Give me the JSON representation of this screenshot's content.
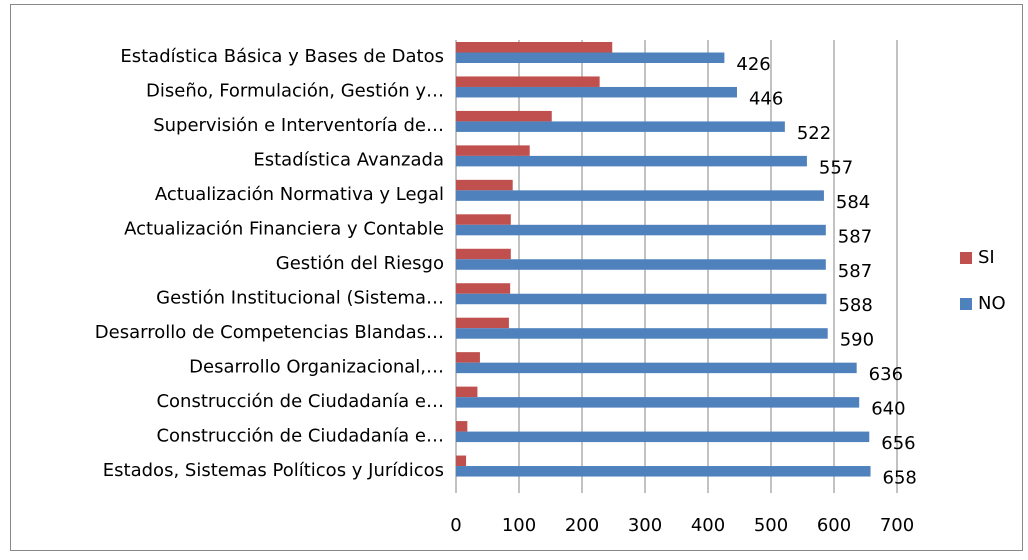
{
  "chart_data": {
    "type": "barh",
    "categories": [
      "Estadística Básica y Bases de Datos",
      "Diseño, Formulación, Gestión y…",
      "Supervisión e Interventoría de…",
      "Estadística Avanzada",
      "Actualización Normativa y Legal",
      "Actualización Financiera y Contable",
      "Gestión del Riesgo",
      "Gestión Institucional (Sistema…",
      "Desarrollo de Competencias Blandas…",
      "Desarrollo Organizacional,…",
      "Construcción de Ciudadanía e…",
      "Construcción de Ciudadanía e…",
      "Estados, Sistemas Políticos y Jurídicos"
    ],
    "series": [
      {
        "name": "SI",
        "color": "#c0504d",
        "values": [
          248,
          228,
          152,
          117,
          90,
          87,
          87,
          86,
          84,
          38,
          34,
          18,
          16
        ]
      },
      {
        "name": "NO",
        "color": "#4f81bd",
        "values": [
          426,
          446,
          522,
          557,
          584,
          587,
          587,
          588,
          590,
          636,
          640,
          656,
          658
        ],
        "data_labels": true
      }
    ],
    "xlim": [
      0,
      700
    ],
    "xticks": [
      0,
      100,
      200,
      300,
      400,
      500,
      600,
      700
    ],
    "grid": true,
    "legend": "right"
  }
}
